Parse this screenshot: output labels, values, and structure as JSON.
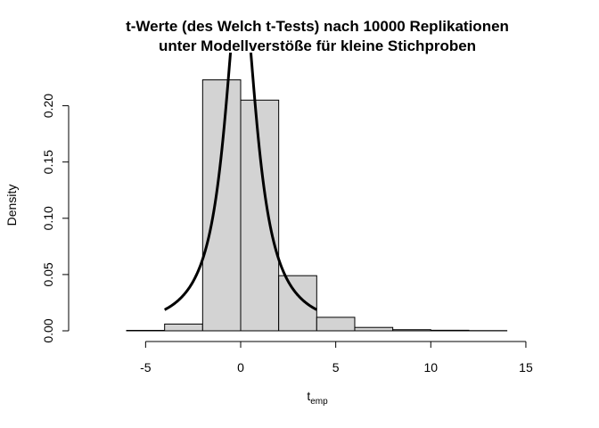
{
  "chart_data": {
    "type": "bar",
    "title_line1": "t-Werte (des Welch t-Tests) nach 10000 Replikationen",
    "title_line2": "unter Modellverstöße für kleine Stichproben",
    "xlabel_main": "t",
    "xlabel_sub": "emp",
    "ylabel": "Density",
    "xlim": [
      -8,
      16
    ],
    "ylim": [
      0,
      0.23
    ],
    "xticks": [
      -5,
      0,
      5,
      10,
      15
    ],
    "xtick_labels": [
      "-5",
      "0",
      "5",
      "10",
      "15"
    ],
    "yticks": [
      0.0,
      0.05,
      0.1,
      0.15,
      0.2
    ],
    "ytick_labels": [
      "0.00",
      "0.05",
      "0.10",
      "0.15",
      "0.20"
    ],
    "bins": [
      {
        "x0": -6,
        "x1": -4,
        "density": 0.0004
      },
      {
        "x0": -4,
        "x1": -2,
        "density": 0.006
      },
      {
        "x0": -2,
        "x1": 0,
        "density": 0.223
      },
      {
        "x0": 0,
        "x1": 2,
        "density": 0.205
      },
      {
        "x0": 2,
        "x1": 4,
        "density": 0.049
      },
      {
        "x0": 4,
        "x1": 6,
        "density": 0.012
      },
      {
        "x0": 6,
        "x1": 8,
        "density": 0.003
      },
      {
        "x0": 8,
        "x1": 10,
        "density": 0.001
      },
      {
        "x0": 10,
        "x1": 12,
        "density": 0.0005
      },
      {
        "x0": 12,
        "x1": 14,
        "density": 0.0002
      }
    ],
    "curve": {
      "type": "t-density",
      "df": 1,
      "x_range": [
        -4,
        4
      ]
    },
    "colors": {
      "bar_fill": "#d3d3d3",
      "bar_stroke": "#000000",
      "curve": "#000000"
    }
  }
}
